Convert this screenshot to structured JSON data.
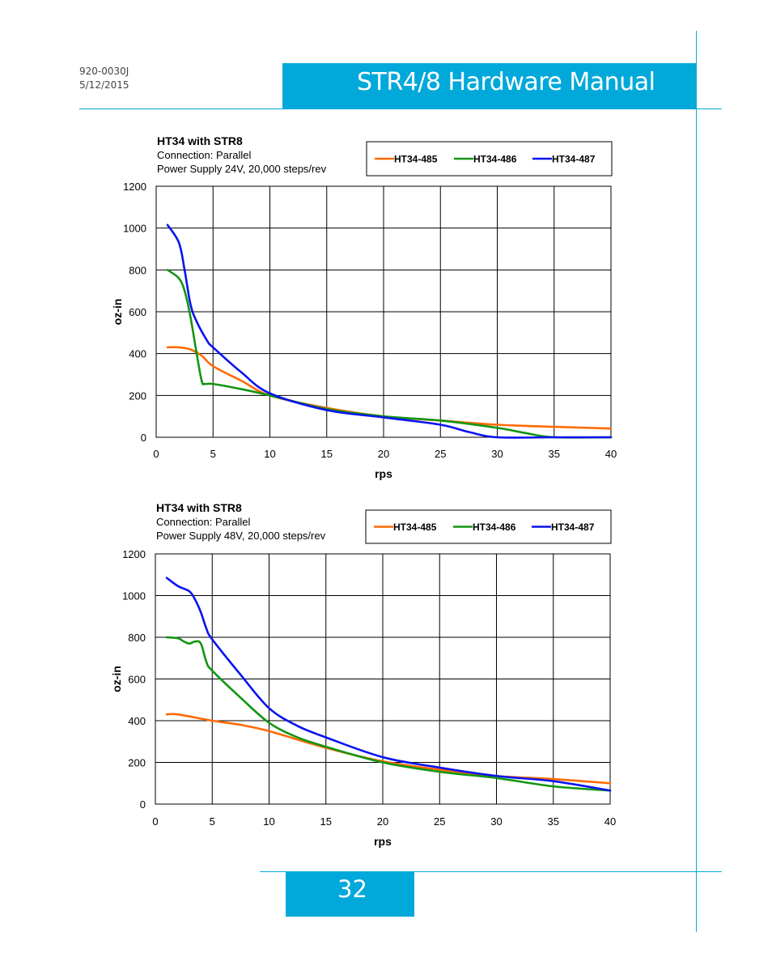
{
  "header": {
    "doc_number": "920-0030J",
    "doc_date": "5/12/2015",
    "title": "STR4/8 Hardware Manual"
  },
  "footer": {
    "page_number": "32"
  },
  "colors": {
    "accent": "#00a9d9",
    "HT34-485": "#ff6a00",
    "HT34-486": "#129612",
    "HT34-487": "#0a14ee"
  },
  "chart_data": [
    {
      "type": "line",
      "title": "HT34 with STR8",
      "subtitle_lines": [
        "Connection: Parallel",
        "Power Supply 24V, 20,000 steps/rev"
      ],
      "xlabel": "rps",
      "ylabel": "oz-in",
      "xlim": [
        0,
        40
      ],
      "ylim": [
        0,
        1200
      ],
      "xticks": [
        0,
        5,
        10,
        15,
        20,
        25,
        30,
        35,
        40
      ],
      "yticks": [
        0,
        200,
        400,
        600,
        800,
        1000,
        1200
      ],
      "grid": true,
      "legend": "top-right",
      "series": [
        {
          "name": "HT34-485",
          "color": "#ff6a00",
          "x": [
            1,
            2,
            3,
            4,
            5,
            7.5,
            10,
            15,
            20,
            25,
            30,
            35,
            40
          ],
          "y": [
            430,
            430,
            420,
            390,
            340,
            270,
            200,
            140,
            100,
            80,
            60,
            50,
            42
          ]
        },
        {
          "name": "HT34-486",
          "color": "#129612",
          "x": [
            1,
            2,
            2.5,
            3,
            3.5,
            4,
            4.3,
            5,
            7.5,
            10,
            15,
            20,
            25,
            30,
            32.5,
            35,
            40
          ],
          "y": [
            800,
            760,
            700,
            580,
            420,
            270,
            255,
            255,
            230,
            200,
            135,
            100,
            80,
            45,
            20,
            0,
            0
          ]
        },
        {
          "name": "HT34-487",
          "color": "#0a14ee",
          "x": [
            1,
            2,
            2.5,
            3,
            3.5,
            4.5,
            5,
            7.5,
            10,
            15,
            20,
            25,
            27.5,
            30,
            35,
            40
          ],
          "y": [
            1015,
            930,
            800,
            640,
            560,
            460,
            430,
            310,
            210,
            130,
            95,
            60,
            25,
            0,
            0,
            0
          ]
        }
      ]
    },
    {
      "type": "line",
      "title": "HT34 with STR8",
      "subtitle_lines": [
        "Connection: Parallel",
        "Power Supply 48V, 20,000 steps/rev"
      ],
      "xlabel": "rps",
      "ylabel": "oz-in",
      "xlim": [
        0,
        40
      ],
      "ylim": [
        0,
        1200
      ],
      "xticks": [
        0,
        5,
        10,
        15,
        20,
        25,
        30,
        35,
        40
      ],
      "yticks": [
        0,
        200,
        400,
        600,
        800,
        1000,
        1200
      ],
      "grid": true,
      "legend": "top-right",
      "series": [
        {
          "name": "HT34-485",
          "color": "#ff6a00",
          "x": [
            1,
            2,
            5,
            7.5,
            10,
            15,
            20,
            25,
            30,
            35,
            40
          ],
          "y": [
            430,
            430,
            400,
            380,
            350,
            270,
            205,
            165,
            135,
            120,
            100
          ]
        },
        {
          "name": "HT34-486",
          "color": "#129612",
          "x": [
            1,
            2,
            2.5,
            3,
            3.5,
            4,
            4.5,
            5,
            7.5,
            10,
            12.5,
            15,
            20,
            25,
            30,
            35,
            40
          ],
          "y": [
            800,
            795,
            780,
            770,
            780,
            770,
            680,
            640,
            510,
            390,
            320,
            275,
            200,
            155,
            125,
            85,
            65
          ]
        },
        {
          "name": "HT34-487",
          "color": "#0a14ee",
          "x": [
            1,
            2,
            3,
            3.5,
            4,
            4.5,
            5,
            7.5,
            10,
            12.5,
            15,
            20,
            25,
            30,
            35,
            40
          ],
          "y": [
            1085,
            1045,
            1020,
            980,
            920,
            840,
            790,
            620,
            460,
            375,
            320,
            225,
            175,
            135,
            110,
            65
          ]
        }
      ]
    }
  ]
}
